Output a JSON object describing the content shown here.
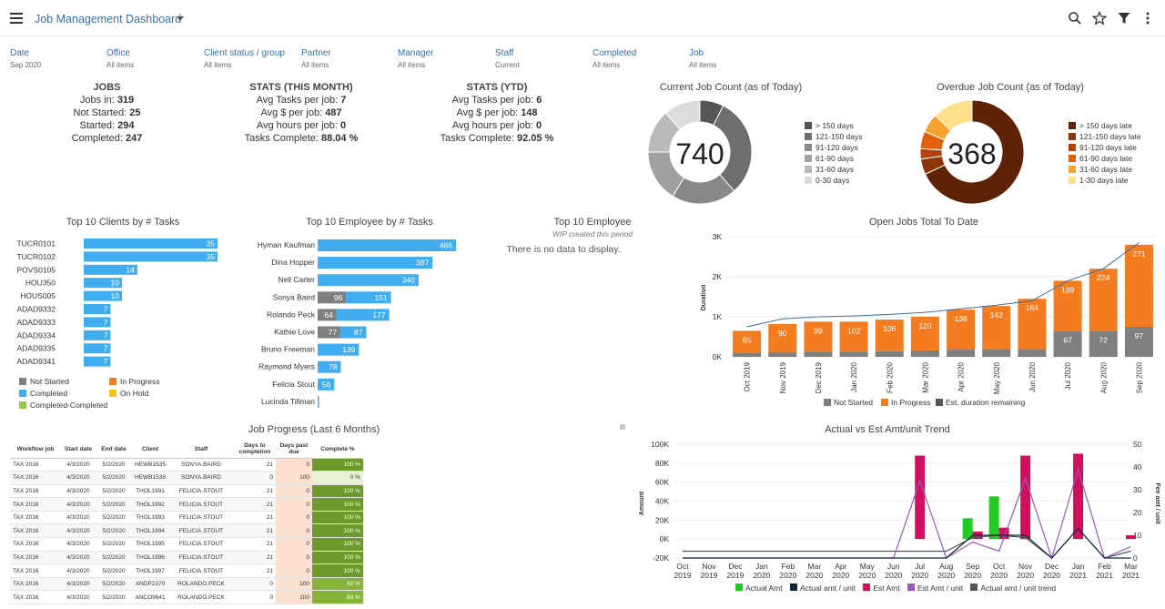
{
  "header": {
    "title": "Job Management Dashboard"
  },
  "filters": [
    {
      "label": "Date",
      "value": "Sep 2020"
    },
    {
      "label": "Office",
      "value": "All items"
    },
    {
      "label": "Client status / group",
      "value": "All items"
    },
    {
      "label": "Partner",
      "value": "All items"
    },
    {
      "label": "Manager",
      "value": "All items"
    },
    {
      "label": "Staff",
      "value": "Current"
    },
    {
      "label": "Completed",
      "value": "All items"
    },
    {
      "label": "Job",
      "value": "All items"
    }
  ],
  "jobs": {
    "title": "JOBS",
    "rows": [
      {
        "label": "Jobs in:",
        "value": "319"
      },
      {
        "label": "Not Started:",
        "value": "25"
      },
      {
        "label": "Started:",
        "value": "294"
      },
      {
        "label": "Completed:",
        "value": "247"
      }
    ]
  },
  "stats_month": {
    "title": "STATS (THIS MONTH)",
    "rows": [
      {
        "label": "Avg Tasks per job:",
        "value": "7"
      },
      {
        "label": "Avg $ per job:",
        "value": "487"
      },
      {
        "label": "Avg hours per job:",
        "value": "0"
      },
      {
        "label": "Tasks Complete:",
        "value": "88.04 %"
      }
    ]
  },
  "stats_ytd": {
    "title": "STATS (YTD)",
    "rows": [
      {
        "label": "Avg Tasks per job:",
        "value": "6"
      },
      {
        "label": "Avg $ per job:",
        "value": "148"
      },
      {
        "label": "Avg hours per job:",
        "value": "0"
      },
      {
        "label": "Tasks Complete:",
        "value": "92.05 %"
      }
    ]
  },
  "top10_employee": {
    "title": "Top 10 Employee",
    "subtitle": "WIP created this period",
    "empty": "There is no data to display."
  },
  "chart_data": [
    {
      "type": "pie",
      "id": "current_job_count",
      "title": "Current Job Count (as of Today)",
      "center_label": "740",
      "labels": [
        "> 150 days",
        "121-150 days",
        "91-120 days",
        "61-90 days",
        "31-60 days",
        "0-30 days"
      ],
      "values": [
        55,
        230,
        150,
        120,
        100,
        85
      ],
      "colors": [
        "#555555",
        "#6e6e6e",
        "#878787",
        "#a0a0a0",
        "#b9b9b9",
        "#dcdcdc"
      ]
    },
    {
      "type": "pie",
      "id": "overdue_job_count",
      "title": "Overdue Job Count (as of Today)",
      "center_label": "368",
      "labels": [
        "> 150 days late",
        "121-150 days late",
        "91-120 days late",
        "61-90 days late",
        "31-60 days late",
        "1-30 days late"
      ],
      "values": [
        250,
        18,
        12,
        20,
        22,
        46
      ],
      "colors": [
        "#5e2206",
        "#8b3509",
        "#b54309",
        "#e0600b",
        "#f5a330",
        "#fde08a"
      ]
    },
    {
      "type": "bar",
      "id": "top10_clients",
      "title": "Top 10 Clients by # Tasks",
      "categories": [
        "TUCR0101",
        "TUCR0102",
        "POVS0105",
        "HOU350",
        "HOUS005",
        "ADAD9332",
        "ADAD9333",
        "ADAD9334",
        "ADAD9335",
        "ADAD9341"
      ],
      "values": [
        35,
        35,
        14,
        10,
        10,
        7,
        7,
        7,
        7,
        7
      ],
      "legend": [
        {
          "name": "Not Started",
          "color": "#7f7f7f"
        },
        {
          "name": "In Progress",
          "color": "#f47c20"
        },
        {
          "name": "Completed",
          "color": "#41adf1"
        },
        {
          "name": "On Hold",
          "color": "#f2c416"
        },
        {
          "name": "Completed-Completed",
          "color": "#95c84a"
        }
      ]
    },
    {
      "type": "bar",
      "id": "top10_employee_tasks",
      "title": "Top 10 Employee by # Tasks",
      "categories": [
        "Hyman Kaufman",
        "Dina Hopper",
        "Nell Carter",
        "Sonya Baird",
        "Rolando Peck",
        "Kathie Love",
        "Bruno Freeman",
        "Raymond Myers",
        "Felicia Stout",
        "Lucinda Tillman"
      ],
      "series": [
        {
          "name": "Not Started",
          "values": [
            0,
            0,
            0,
            96,
            64,
            77,
            0,
            0,
            0,
            0
          ]
        },
        {
          "name": "Completed",
          "values": [
            466,
            387,
            340,
            151,
            177,
            87,
            139,
            78,
            56,
            1
          ]
        }
      ]
    },
    {
      "type": "bar",
      "id": "open_jobs_total",
      "title": "Open Jobs Total To Date",
      "ylabel": "Duration",
      "ylim": [
        0,
        3000
      ],
      "yticks": [
        "0K",
        "1K",
        "2K",
        "3K"
      ],
      "categories": [
        "Oct 2019",
        "Nov 2019",
        "Dec 2019",
        "Jan 2020",
        "Feb 2020",
        "Mar 2020",
        "Apr 2020",
        "May 2020",
        "Jun 2020",
        "Jul 2020",
        "Aug 2020",
        "Sep 2020"
      ],
      "series": [
        {
          "name": "Not Started",
          "color": "#7f7f7f",
          "values": [
            100,
            120,
            130,
            130,
            140,
            160,
            180,
            190,
            200,
            650,
            650,
            750
          ],
          "labels": [
            "",
            "",
            "",
            "",
            "",
            "",
            "",
            "",
            "",
            "67",
            "72",
            "97"
          ]
        },
        {
          "name": "In Progress",
          "color": "#f47c20",
          "values": [
            550,
            700,
            750,
            750,
            790,
            840,
            1000,
            1080,
            1250,
            1250,
            1550,
            2050
          ],
          "labels": [
            "65",
            "90",
            "99",
            "102",
            "106",
            "120",
            "138",
            "142",
            "164",
            "189",
            "224",
            "271"
          ]
        },
        {
          "name": "Est. duration remaining",
          "color": "#3a6fa8",
          "values": [
            750,
            950,
            1000,
            1020,
            1060,
            1110,
            1200,
            1290,
            1400,
            1900,
            2200,
            2850
          ]
        }
      ]
    },
    {
      "type": "bar",
      "id": "actual_vs_est",
      "title": "Actual vs Est Amt/unit Trend",
      "ylabel": "Amount",
      "y2label": "Fee amt / unit",
      "ylim": [
        -20000,
        100000
      ],
      "y2lim": [
        0,
        50
      ],
      "yticks": [
        "-20K",
        "0K",
        "20K",
        "40K",
        "60K",
        "80K",
        "100K"
      ],
      "y2ticks": [
        "0",
        "10",
        "20",
        "30",
        "40",
        "50"
      ],
      "categories": [
        "Oct 2019",
        "Nov 2019",
        "Dec 2019",
        "Jan 2020",
        "Feb 2020",
        "Mar 2020",
        "Apr 2020",
        "May 2020",
        "Jun 2020",
        "Jul 2020",
        "Aug 2020",
        "Sep 2020",
        "Oct 2020",
        "Nov 2020",
        "Dec 2020",
        "Jan 2021",
        "Feb 2021",
        "Mar 2021"
      ],
      "series": [
        {
          "name": "Actual Amt",
          "color": "#22cc22",
          "values": [
            0,
            0,
            0,
            0,
            0,
            0,
            0,
            0,
            0,
            0,
            0,
            22000,
            45000,
            0,
            0,
            0,
            0,
            0
          ]
        },
        {
          "name": "Actual amt / unit",
          "color": "#0f2a3f",
          "values": [
            0,
            0,
            0,
            0,
            0,
            0,
            0,
            0,
            0,
            0,
            0,
            10,
            10,
            10,
            0,
            13,
            0,
            0
          ]
        },
        {
          "name": "Est Amt",
          "color": "#d0105e",
          "values": [
            0,
            0,
            0,
            0,
            0,
            0,
            0,
            0,
            0,
            88000,
            0,
            8000,
            12000,
            88000,
            0,
            90000,
            0,
            4000
          ]
        },
        {
          "name": "Est Amt / unit",
          "color": "#9b59b6",
          "values": [
            0,
            0,
            0,
            0,
            0,
            0,
            0,
            0,
            0,
            34,
            0,
            7,
            3,
            35,
            0,
            39,
            0,
            5
          ]
        },
        {
          "name": "Actual amt / unit trend",
          "color": "#555555",
          "values": [
            3,
            3,
            3,
            3,
            3,
            3,
            3,
            3,
            3,
            3,
            3,
            9,
            10,
            9,
            0,
            13,
            0,
            3
          ]
        }
      ]
    }
  ],
  "job_progress": {
    "title": "Job Progress (Last 6 Months)",
    "headers": [
      "Workflow job",
      "Start date",
      "End date",
      "Client",
      "Staff",
      "Days to completion",
      "Days past due",
      "Complete %"
    ],
    "rows": [
      [
        "TAX 2016",
        "4/3/2020",
        "5/2/2020",
        "HEWB1535",
        "SONYA.BAIRD",
        "21",
        "0",
        "100 %"
      ],
      [
        "TAX 2016",
        "4/3/2020",
        "5/2/2020",
        "HEWB1538",
        "SONYA.BAIRD",
        "0",
        "100",
        "0 %"
      ],
      [
        "TAX 2016",
        "4/3/2020",
        "5/2/2020",
        "THOL1991",
        "FELICIA.STOUT",
        "21",
        "0",
        "100 %"
      ],
      [
        "TAX 2016",
        "4/3/2020",
        "5/2/2020",
        "THOL1992",
        "FELICIA.STOUT",
        "21",
        "0",
        "100 %"
      ],
      [
        "TAX 2016",
        "4/3/2020",
        "5/2/2020",
        "THOL1993",
        "FELICIA.STOUT",
        "21",
        "0",
        "100 %"
      ],
      [
        "TAX 2016",
        "4/3/2020",
        "5/2/2020",
        "THOL1994",
        "FELICIA.STOUT",
        "21",
        "0",
        "100 %"
      ],
      [
        "TAX 2016",
        "4/3/2020",
        "5/2/2020",
        "THOL1995",
        "FELICIA.STOUT",
        "21",
        "0",
        "100 %"
      ],
      [
        "TAX 2016",
        "4/3/2020",
        "5/2/2020",
        "THOL1996",
        "FELICIA.STOUT",
        "21",
        "0",
        "100 %"
      ],
      [
        "TAX 2016",
        "4/3/2020",
        "5/2/2020",
        "THOL1997",
        "FELICIA.STOUT",
        "21",
        "0",
        "100 %"
      ],
      [
        "TAX 2016",
        "4/3/2020",
        "5/2/2020",
        "ANDP2370",
        "ROLANDO.PECK",
        "0",
        "100",
        "83 %"
      ],
      [
        "TAX 2016",
        "4/3/2020",
        "5/2/2020",
        "ANCO9641",
        "ROLANDO.PECK",
        "0",
        "100",
        "83 %"
      ]
    ]
  },
  "colors": {
    "accent": "#3a6fa8",
    "not_started": "#7f7f7f",
    "in_progress": "#f47c20",
    "completed": "#41adf1"
  }
}
